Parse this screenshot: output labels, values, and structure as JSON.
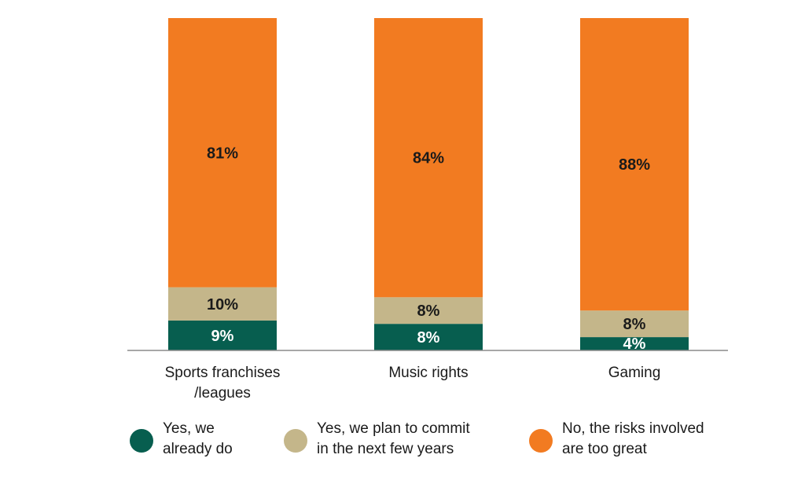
{
  "chart_data": {
    "type": "bar",
    "stacked": true,
    "orientation": "vertical",
    "categories": [
      "Sports franchises\n/leagues",
      "Music rights",
      "Gaming"
    ],
    "series": [
      {
        "name": "Yes, we already do",
        "values": [
          9,
          8,
          4
        ],
        "color": "#075e4f",
        "label_color": "#ffffff"
      },
      {
        "name": "Yes, we plan to commit in the next few years",
        "values": [
          10,
          8,
          8
        ],
        "color": "#c4b68a",
        "label_color": "#1a1a1a"
      },
      {
        "name": "No, the risks involved are too great",
        "values": [
          81,
          84,
          88
        ],
        "color": "#f27b21",
        "label_color": "#1a1a1a"
      }
    ],
    "value_labels": [
      [
        "9%",
        "8%",
        "4%"
      ],
      [
        "10%",
        "8%",
        "8%"
      ],
      [
        "81%",
        "84%",
        "88%"
      ]
    ],
    "ylim": [
      0,
      100
    ],
    "grid": false,
    "legend_position": "bottom"
  },
  "legend": [
    {
      "text": "Yes, we\nalready do",
      "color": "#075e4f"
    },
    {
      "text": "Yes, we plan to commit\nin the next few years",
      "color": "#c4b68a"
    },
    {
      "text": "No, the risks involved\nare too great",
      "color": "#f27b21"
    }
  ]
}
